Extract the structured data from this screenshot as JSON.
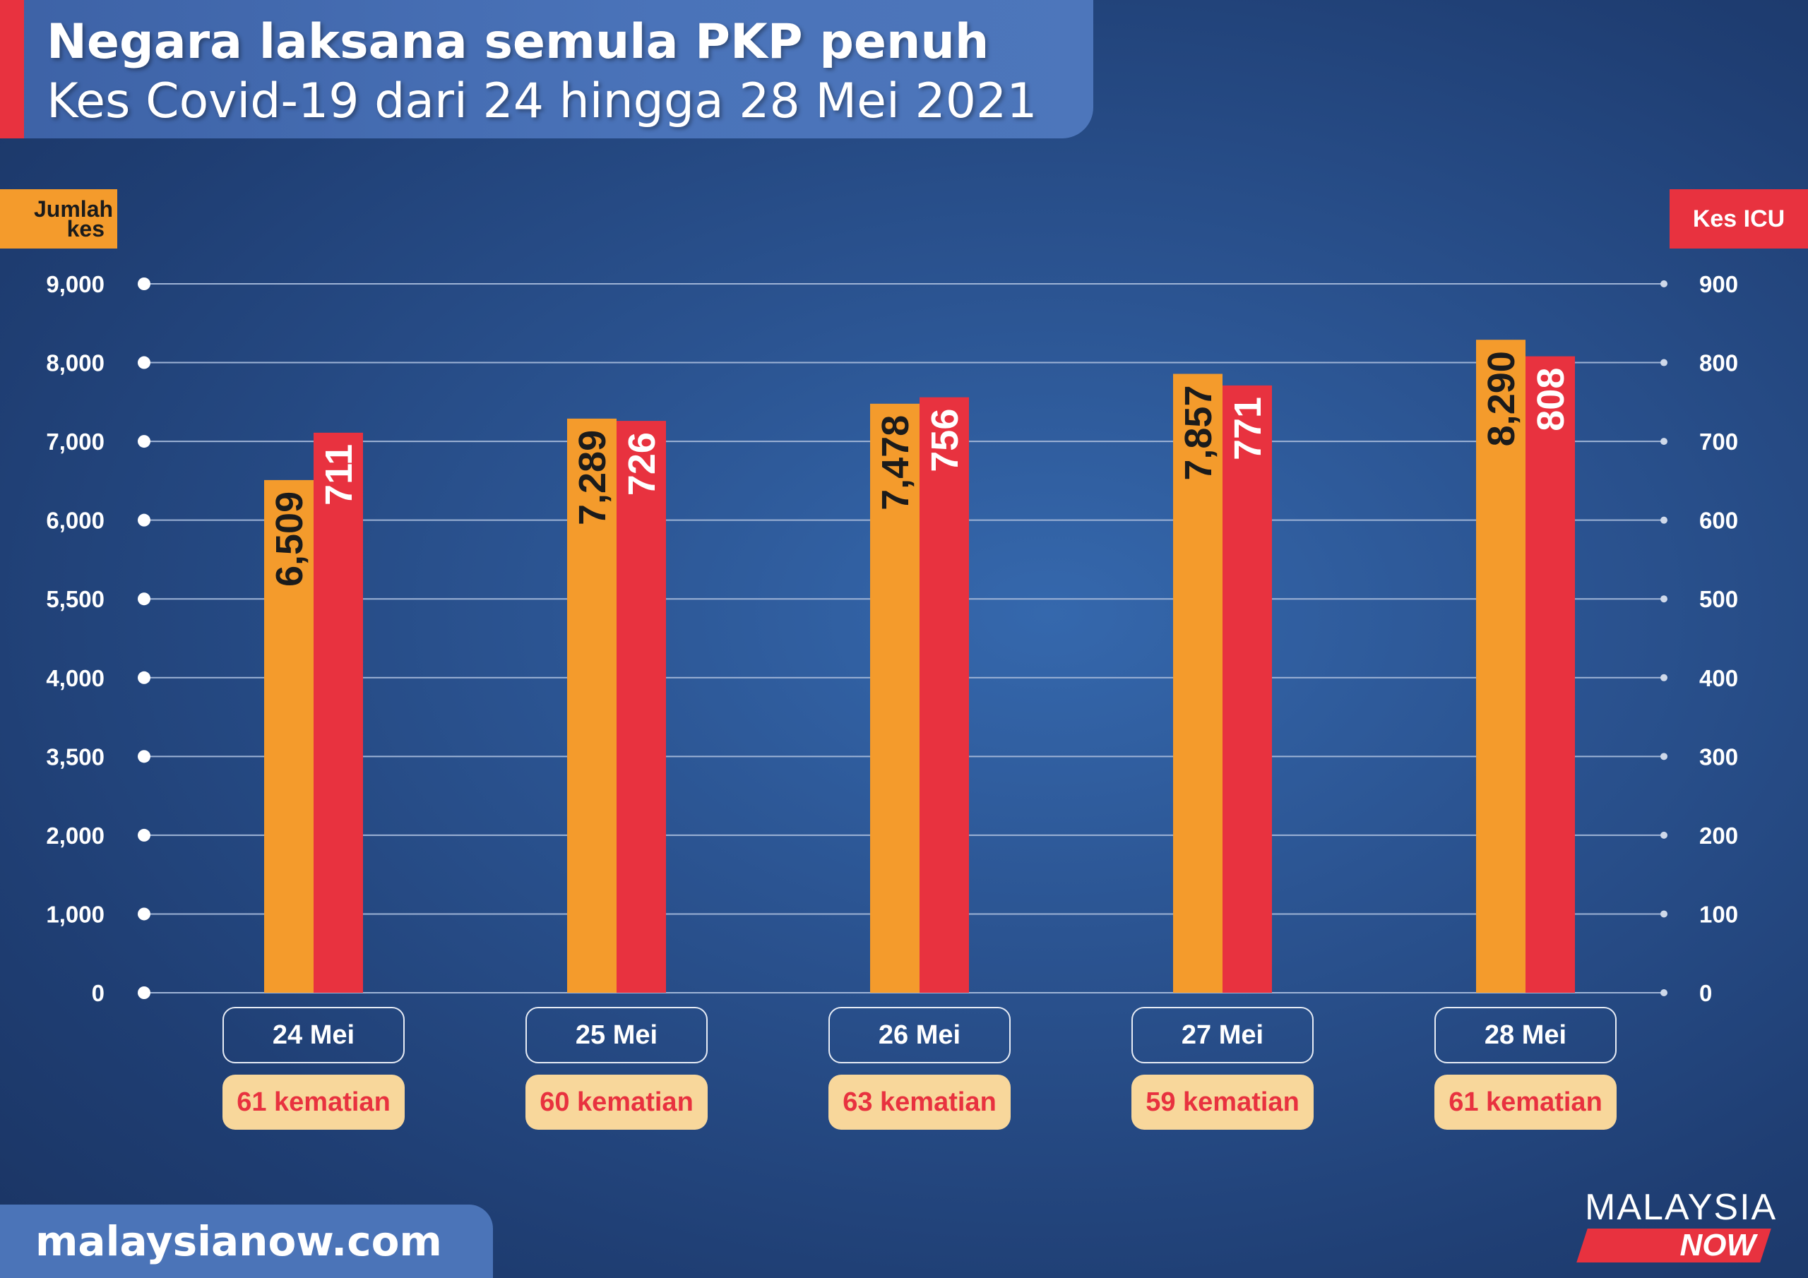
{
  "header": {
    "title": "Negara laksana semula PKP penuh",
    "subtitle": "Kes Covid-19 dari 24 hingga 28 Mei 2021"
  },
  "footer": {
    "site": "malaysianow.com",
    "brand_top": "MALAYSIA",
    "brand_bottom": "NOW"
  },
  "colors": {
    "cases": "#f49b2c",
    "icu": "#e8323f",
    "deaths_bg": "#f8d79b"
  },
  "chart_data": {
    "type": "bar",
    "title": "Kes Covid-19 dari 24 hingga 28 Mei 2021",
    "categories": [
      "24 Mei",
      "25 Mei",
      "26 Mei",
      "27 Mei",
      "28 Mei"
    ],
    "series": [
      {
        "name": "Jumlah kes",
        "axis": "left",
        "values": [
          6509,
          7289,
          7478,
          7857,
          8290
        ],
        "labels": [
          "6,509",
          "7,289",
          "7,478",
          "7,857",
          "8,290"
        ]
      },
      {
        "name": "Kes ICU",
        "axis": "right",
        "values": [
          711,
          726,
          756,
          771,
          808
        ],
        "labels": [
          "711",
          "726",
          "756",
          "771",
          "808"
        ]
      }
    ],
    "annotations": [
      "61 kematian",
      "60 kematian",
      "63 kematian",
      "59 kematian",
      "61 kematian"
    ],
    "ylabel_left": "Jumlah kes",
    "ylabel_right": "Kes ICU",
    "yticks_left": [
      "0",
      "1,000",
      "2,000",
      "3,500",
      "4,000",
      "5,500",
      "6,000",
      "7,000",
      "8,000",
      "9,000"
    ],
    "yticks_right": [
      "0",
      "100",
      "200",
      "300",
      "400",
      "500",
      "600",
      "700",
      "800",
      "900"
    ],
    "ylim_right": [
      0,
      900
    ],
    "grid": true,
    "legend": "none"
  }
}
